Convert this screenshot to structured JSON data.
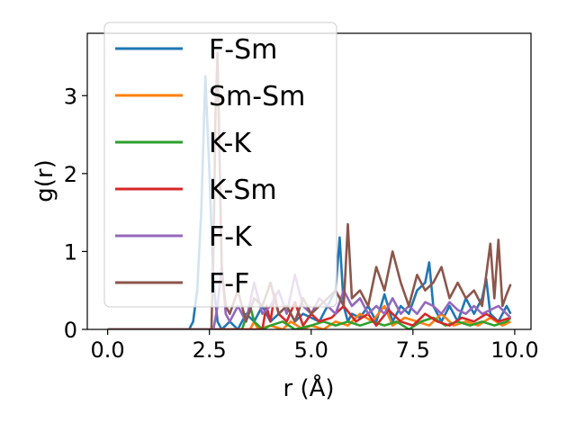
{
  "chart_data": {
    "type": "line",
    "xlabel": "r (Å)",
    "ylabel": "g(r)",
    "xlim": [
      -0.5,
      10.4
    ],
    "ylim": [
      0,
      3.8
    ],
    "xticks": [
      0.0,
      2.5,
      5.0,
      7.5,
      10.0
    ],
    "xtick_labels": [
      "0.0",
      "2.5",
      "5.0",
      "7.5",
      "10.0"
    ],
    "yticks": [
      0,
      1,
      2,
      3
    ],
    "ytick_labels": [
      "0",
      "1",
      "2",
      "3"
    ],
    "grid": false,
    "legend_position": "top-left",
    "series": [
      {
        "name": "F-Sm",
        "color": "#1f77b4",
        "x": [
          0.0,
          2.0,
          2.1,
          2.2,
          2.3,
          2.4,
          2.5,
          2.6,
          2.7,
          2.8,
          2.9,
          3.0,
          3.2,
          3.4,
          3.6,
          3.8,
          4.0,
          4.2,
          4.4,
          4.6,
          4.8,
          5.0,
          5.2,
          5.4,
          5.6,
          5.7,
          5.8,
          5.9,
          6.0,
          6.2,
          6.4,
          6.6,
          6.8,
          7.0,
          7.2,
          7.4,
          7.6,
          7.8,
          7.9,
          8.0,
          8.1,
          8.2,
          8.4,
          8.6,
          8.8,
          9.0,
          9.2,
          9.3,
          9.4,
          9.6,
          9.8,
          9.9
        ],
        "y": [
          0,
          0,
          0.1,
          0.5,
          1.5,
          3.25,
          2.0,
          0.6,
          0.1,
          0.0,
          0.05,
          0.1,
          0.0,
          0.2,
          0.1,
          0.3,
          0.1,
          0.2,
          0.3,
          0.1,
          0.2,
          0.15,
          0.1,
          0.3,
          0.5,
          1.18,
          0.3,
          0.1,
          0.2,
          0.15,
          0.3,
          0.1,
          0.45,
          0.1,
          0.3,
          0.2,
          0.5,
          0.6,
          0.86,
          0.3,
          0.2,
          0.1,
          0.3,
          0.1,
          0.4,
          0.2,
          0.4,
          0.65,
          0.2,
          0.1,
          0.3,
          0.2
        ]
      },
      {
        "name": "Sm-Sm",
        "color": "#ff7f0e",
        "x": [
          0.0,
          3.5,
          3.6,
          3.7,
          4.0,
          4.3,
          4.5,
          4.8,
          5.0,
          5.3,
          5.6,
          5.9,
          6.2,
          6.5,
          6.8,
          7.0,
          7.3,
          7.6,
          7.9,
          8.2,
          8.5,
          8.8,
          9.1,
          9.4,
          9.7,
          9.9
        ],
        "y": [
          0,
          0,
          0.1,
          0.0,
          0.05,
          0.0,
          0.1,
          0.0,
          0.05,
          0.0,
          0.1,
          0.05,
          0.2,
          0.1,
          0.3,
          0.05,
          0.15,
          0.1,
          0.05,
          0.2,
          0.05,
          0.1,
          0.05,
          0.15,
          0.05,
          0.1
        ]
      },
      {
        "name": "K-K",
        "color": "#2ca02c",
        "x": [
          0.0,
          3.3,
          3.4,
          3.5,
          3.6,
          3.8,
          4.0,
          4.3,
          4.6,
          5.0,
          5.3,
          5.6,
          5.9,
          6.2,
          6.5,
          6.8,
          7.1,
          7.4,
          7.7,
          8.0,
          8.3,
          8.6,
          8.9,
          9.2,
          9.5,
          9.8,
          9.9
        ],
        "y": [
          0,
          0,
          0.15,
          0.3,
          0.1,
          0.0,
          0.05,
          0.1,
          0.0,
          0.05,
          0.1,
          0.05,
          0.1,
          0.05,
          0.1,
          0.05,
          0.1,
          0.0,
          0.1,
          0.15,
          0.05,
          0.1,
          0.05,
          0.1,
          0.05,
          0.1,
          0.15
        ]
      },
      {
        "name": "K-Sm",
        "color": "#d62728",
        "x": [
          0.0,
          3.8,
          3.9,
          4.0,
          4.1,
          4.2,
          4.4,
          4.6,
          4.8,
          5.0,
          5.2,
          5.5,
          5.8,
          6.1,
          6.4,
          6.6,
          6.9,
          7.2,
          7.5,
          7.8,
          8.1,
          8.4,
          8.7,
          9.0,
          9.3,
          9.6,
          9.9
        ],
        "y": [
          0,
          0,
          0.3,
          0.1,
          0.45,
          0.2,
          0.1,
          0.35,
          0.05,
          0.2,
          0.1,
          0.15,
          0.3,
          0.1,
          0.2,
          0.05,
          0.25,
          0.1,
          0.05,
          0.2,
          0.1,
          0.05,
          0.15,
          0.1,
          0.2,
          0.1,
          0.15
        ]
      },
      {
        "name": "F-K",
        "color": "#9467bd",
        "x": [
          0.0,
          2.6,
          2.7,
          2.8,
          2.9,
          3.0,
          3.2,
          3.4,
          3.6,
          3.8,
          4.0,
          4.2,
          4.4,
          4.6,
          4.8,
          5.0,
          5.2,
          5.4,
          5.6,
          5.8,
          6.0,
          6.2,
          6.4,
          6.6,
          6.8,
          7.0,
          7.2,
          7.4,
          7.6,
          7.8,
          8.0,
          8.2,
          8.4,
          8.6,
          8.8,
          9.0,
          9.2,
          9.4,
          9.6,
          9.8,
          9.9
        ],
        "y": [
          0,
          0,
          0.3,
          0.8,
          0.2,
          0.1,
          0.3,
          0.1,
          0.6,
          0.2,
          0.3,
          0.5,
          0.2,
          0.7,
          0.3,
          0.2,
          0.4,
          0.3,
          0.2,
          0.5,
          0.3,
          0.4,
          0.2,
          0.3,
          0.2,
          0.4,
          0.2,
          0.3,
          0.2,
          0.35,
          0.3,
          0.2,
          0.35,
          0.25,
          0.2,
          0.3,
          0.2,
          0.25,
          0.3,
          0.2,
          0.15
        ]
      },
      {
        "name": "F-F",
        "color": "#8c564b",
        "x": [
          0.0,
          2.55,
          2.6,
          2.65,
          2.7,
          2.75,
          2.8,
          2.9,
          3.0,
          3.2,
          3.4,
          3.6,
          3.8,
          4.0,
          4.2,
          4.4,
          4.6,
          4.8,
          5.0,
          5.2,
          5.4,
          5.6,
          5.8,
          5.9,
          6.0,
          6.2,
          6.4,
          6.6,
          6.8,
          7.0,
          7.2,
          7.4,
          7.6,
          7.8,
          8.0,
          8.2,
          8.4,
          8.6,
          8.8,
          9.0,
          9.2,
          9.4,
          9.5,
          9.6,
          9.7,
          9.8,
          9.9
        ],
        "y": [
          0,
          0,
          1.0,
          2.8,
          3.55,
          2.2,
          0.8,
          0.3,
          0.2,
          0.5,
          0.1,
          0.4,
          0.3,
          0.6,
          0.2,
          0.3,
          0.1,
          0.4,
          0.2,
          0.3,
          0.4,
          0.5,
          0.3,
          1.35,
          0.4,
          0.5,
          0.3,
          0.8,
          0.5,
          1.0,
          0.6,
          0.3,
          0.7,
          0.5,
          0.6,
          0.8,
          0.4,
          0.6,
          0.4,
          0.5,
          0.3,
          1.1,
          0.4,
          1.15,
          0.3,
          0.45,
          0.58
        ]
      }
    ]
  }
}
